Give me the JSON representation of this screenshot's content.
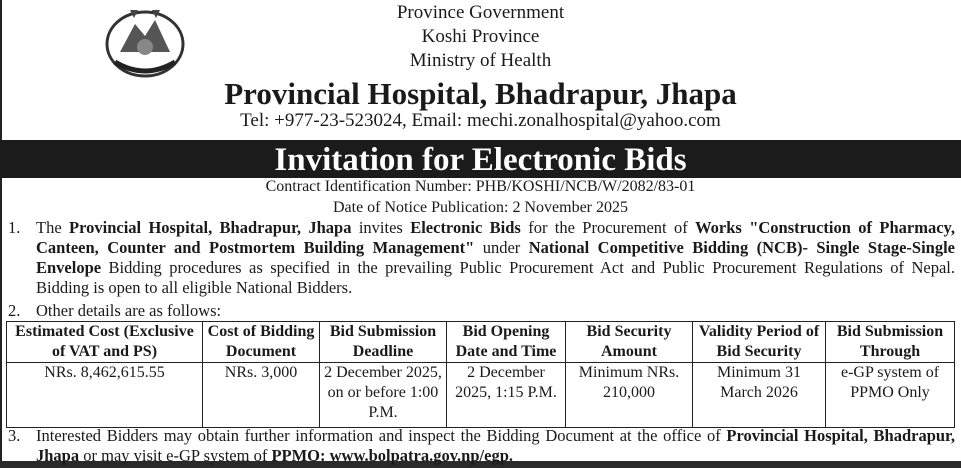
{
  "header": {
    "line1": "Province Government",
    "line2": "Koshi Province",
    "line3": "Ministry of Health",
    "hospital": "Provincial Hospital, Bhadrapur, Jhapa",
    "contact": "Tel: +977-23-523024, Email: mechi.zonalhospital@yahoo.com"
  },
  "banner": "Invitation for Electronic Bids",
  "contract_id": "Contract Identification Number: PHB/KOSHI/NCB/W/2082/83-01",
  "publication_date": "Date of Notice Publication: 2 November 2025",
  "items": [
    {
      "num": "1.",
      "parts": [
        "The ",
        "Provincial Hospital, Bhadrapur, Jhapa",
        " invites ",
        "Electronic Bids",
        " for the Procurement of ",
        "Works \"Construction of Pharmacy, Canteen, Counter and Postmortem Building Management\"",
        " under ",
        "National Competitive Bidding (NCB)- Single Stage-Single Envelope",
        " Bidding procedures as specified in the prevailing Public Procurement Act and Public Procurement Regulations of Nepal. Bidding is open to all eligible National Bidders."
      ]
    },
    {
      "num": "2.",
      "text": "Other details are as follows:"
    },
    {
      "num": "3.",
      "parts": [
        "Interested Bidders may obtain further information and inspect the Bidding Document at the office of ",
        "Provincial Hospital, Bhadrapur, Jhapa",
        " or may visit e-GP system of ",
        "PPMO: www.bolpatra.gov.np/egp."
      ]
    }
  ],
  "table": {
    "headers": [
      "Estimated Cost (Exclusive of VAT and PS)",
      "Cost of Bidding Document",
      "Bid Submission Deadline",
      "Bid Opening Date and Time",
      "Bid Security Amount",
      "Validity Period of Bid Security",
      "Bid Submission Through"
    ],
    "row": [
      "NRs. 8,462,615.55",
      "NRs. 3,000",
      "2 December 2025, on or before 1:00 P.M.",
      "2 December 2025, 1:15 P.M.",
      "Minimum NRs. 210,000",
      "Minimum 31 March 2026",
      "e-GP system of PPMO Only"
    ]
  }
}
